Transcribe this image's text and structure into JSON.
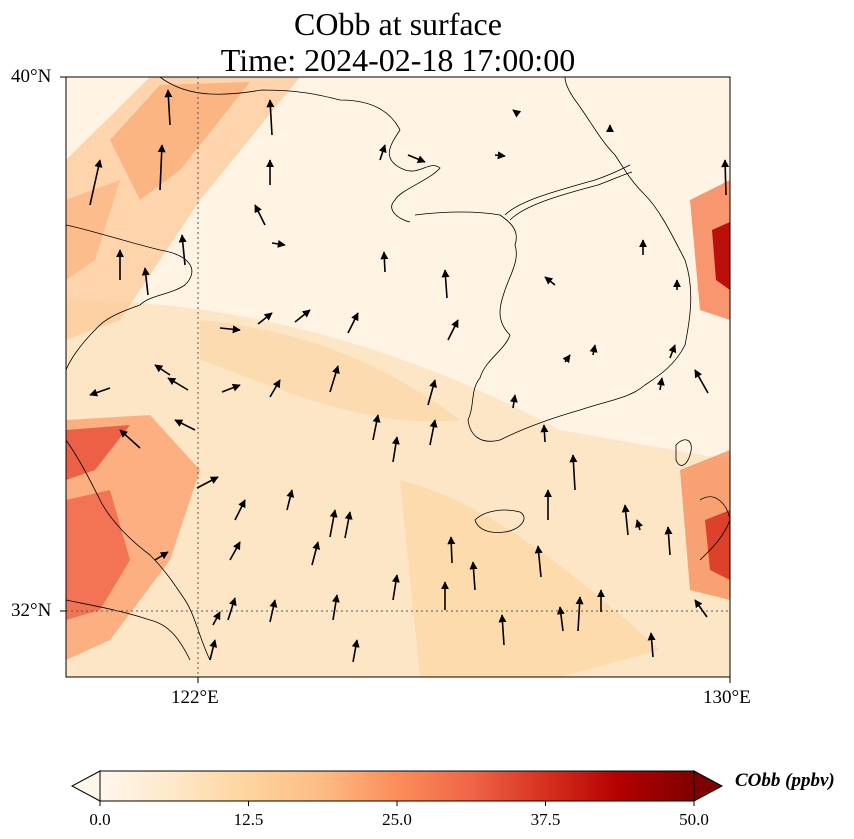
{
  "title_line1": "CObb at surface",
  "title_line2": "Time: 2024-02-18 17:00:00",
  "map": {
    "lon_range": [
      120,
      130
    ],
    "lat_range": [
      31,
      40
    ],
    "lat_ticks": [
      {
        "value": 40,
        "label": "40°N"
      },
      {
        "value": 32,
        "label": "32°N"
      }
    ],
    "lon_ticks": [
      {
        "value": 122,
        "label": "122°E"
      },
      {
        "value": 130,
        "label": "130°E"
      }
    ],
    "gridlines": "dotted at 122°E and 32°N",
    "wind_vectors": "black arrows, predominantly northward flow",
    "coastlines": "black thin lines (China, Korea, Shandong peninsula, Jeju)"
  },
  "colorbar": {
    "label": "CObb (ppbv)",
    "min": 0.0,
    "max": 50.0,
    "ticks": [
      "0.0",
      "12.5",
      "25.0",
      "37.5",
      "50.0"
    ],
    "extend": "both",
    "colormap": "OrRd",
    "colors": [
      "#fff7ec",
      "#fee8c8",
      "#fdd49e",
      "#fdbb84",
      "#fc8d59",
      "#ef6548",
      "#d7301f",
      "#b30000",
      "#7f0000"
    ]
  }
}
